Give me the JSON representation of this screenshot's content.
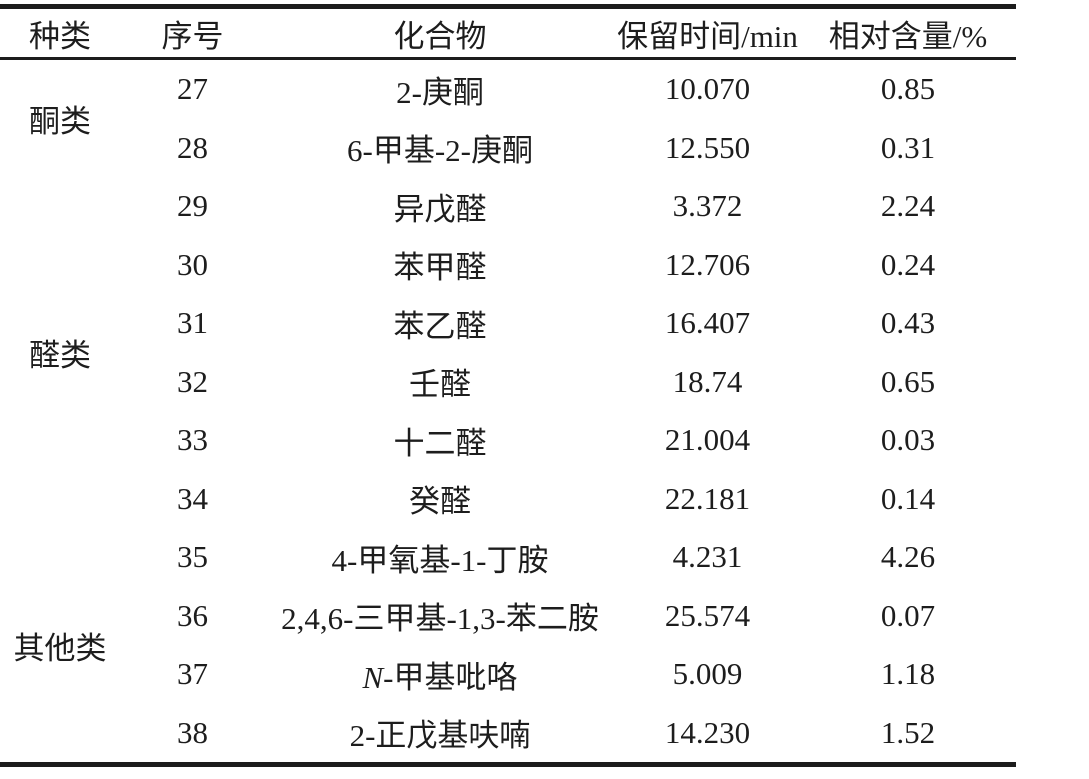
{
  "table": {
    "headers": {
      "category": "种类",
      "number": "序号",
      "compound": "化合物",
      "retention_time": "保留时间/min",
      "relative_content": "相对含量/%"
    },
    "groups": [
      {
        "label": "酮类",
        "rowspan": 2
      },
      {
        "label": "醛类",
        "rowspan": 6
      },
      {
        "label": "其他类",
        "rowspan": 4
      }
    ],
    "rows": [
      {
        "no": "27",
        "compound": "2-庚酮",
        "rt": "10.070",
        "content": "0.85"
      },
      {
        "no": "28",
        "compound": "6-甲基-2-庚酮",
        "rt": "12.550",
        "content": "0.31"
      },
      {
        "no": "29",
        "compound": "异戊醛",
        "rt": "3.372",
        "content": "2.24"
      },
      {
        "no": "30",
        "compound": "苯甲醛",
        "rt": "12.706",
        "content": "0.24"
      },
      {
        "no": "31",
        "compound": "苯乙醛",
        "rt": "16.407",
        "content": "0.43"
      },
      {
        "no": "32",
        "compound": "壬醛",
        "rt": "18.74",
        "content": "0.65"
      },
      {
        "no": "33",
        "compound": "十二醛",
        "rt": "21.004",
        "content": "0.03"
      },
      {
        "no": "34",
        "compound": "癸醛",
        "rt": "22.181",
        "content": "0.14"
      },
      {
        "no": "35",
        "compound": "4-甲氧基-1-丁胺",
        "rt": "4.231",
        "content": "4.26"
      },
      {
        "no": "36",
        "compound": "2,4,6-三甲基-1,3-苯二胺",
        "rt": "25.574",
        "content": "0.07"
      },
      {
        "no": "37",
        "compound_prefix_italic": "N",
        "compound_rest": "-甲基吡咯",
        "rt": "5.009",
        "content": "1.18"
      },
      {
        "no": "38",
        "compound": "2-正戊基呋喃",
        "rt": "14.230",
        "content": "1.52"
      }
    ],
    "colors": {
      "text": "#1d1d1d",
      "rule": "#1c1c1c",
      "background": "#ffffff"
    }
  }
}
